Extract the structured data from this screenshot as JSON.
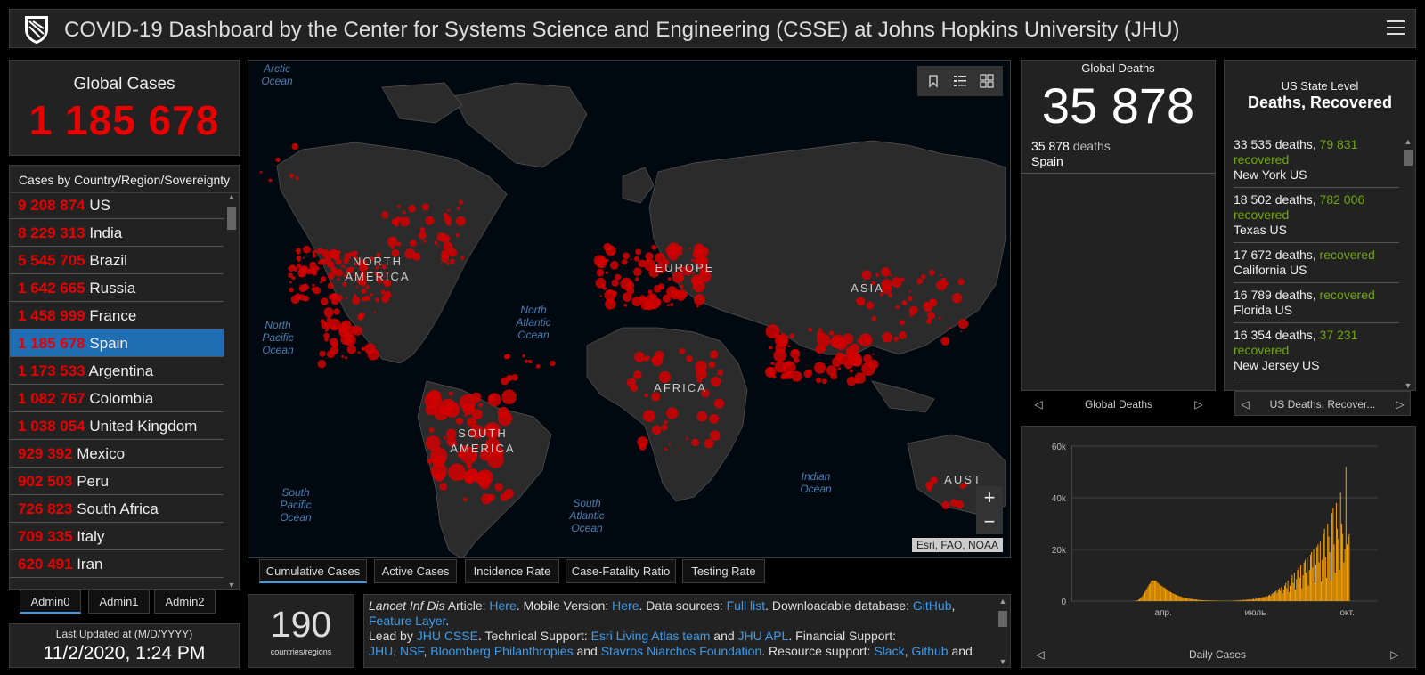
{
  "header": {
    "title": "COVID-19 Dashboard by the Center for Systems Science and Engineering (CSSE) at Johns Hopkins University (JHU)"
  },
  "global_cases": {
    "label": "Global Cases",
    "value": "1 185 678"
  },
  "country_list": {
    "header": "Cases by Country/Region/Sovereignty",
    "rows": [
      {
        "num": "9 208 874",
        "name": "US"
      },
      {
        "num": "8 229 313",
        "name": "India"
      },
      {
        "num": "5 545 705",
        "name": "Brazil"
      },
      {
        "num": "1 642 665",
        "name": "Russia"
      },
      {
        "num": "1 458 999",
        "name": "France"
      },
      {
        "num": "1 185 678",
        "name": "Spain"
      },
      {
        "num": "1 173 533",
        "name": "Argentina"
      },
      {
        "num": "1 082 767",
        "name": "Colombia"
      },
      {
        "num": "1 038 054",
        "name": "United Kingdom"
      },
      {
        "num": "929 392",
        "name": "Mexico"
      },
      {
        "num": "902 503",
        "name": "Peru"
      },
      {
        "num": "726 823",
        "name": "South Africa"
      },
      {
        "num": "709 335",
        "name": "Italy"
      },
      {
        "num": "620 491",
        "name": "Iran"
      }
    ],
    "selected_index": 5
  },
  "admin_tabs": [
    "Admin0",
    "Admin1",
    "Admin2"
  ],
  "last_updated": {
    "label": "Last Updated at (M/D/YYYY)",
    "value": "11/2/2020, 1:24 PM"
  },
  "map": {
    "ocean_labels": [
      "Arctic Ocean",
      "North Pacific Ocean",
      "North Atlantic Ocean",
      "South Pacific Ocean",
      "South Atlantic Ocean",
      "Indian Ocean"
    ],
    "continent_labels": [
      "NORTH AMERICA",
      "EUROPE",
      "ASIA",
      "AFRICA",
      "SOUTH AMERICA",
      "AUST"
    ],
    "attribution": "Esri, FAO, NOAA",
    "zoom_in": "+",
    "zoom_out": "−"
  },
  "map_tabs": [
    "Cumulative Cases",
    "Active Cases",
    "Incidence Rate",
    "Case-Fatality Ratio",
    "Testing Rate"
  ],
  "countries_count": {
    "value": "190",
    "label": "countries/regions"
  },
  "info": {
    "l1_italic": "Lancet Inf Dis",
    "l1_a": " Article: ",
    "l1_here1": "Here",
    "l1_b": ". Mobile Version: ",
    "l1_here2": "Here",
    "l1_c": ". Data sources: ",
    "l1_full": "Full list",
    "l1_d": ". Downloadable database: ",
    "l1_github": "GitHub",
    "l1_e": ",",
    "l2_feature": "Feature Layer",
    "l2_a": ".",
    "l3_a": "Lead by ",
    "l3_jhu": "JHU CSSE",
    "l3_b": ". Technical Support: ",
    "l3_esri": "Esri Living Atlas team",
    "l3_c": " and ",
    "l3_apl": "JHU APL",
    "l3_d": ". Financial Support:",
    "l4_jhu": "JHU",
    "l4_a": ", ",
    "l4_nsf": "NSF",
    "l4_b": ", ",
    "l4_bloom": "Bloomberg Philanthropies",
    "l4_c": " and ",
    "l4_stav": "Stavros Niarchos Foundation",
    "l4_d": ". Resource support: ",
    "l4_slack": "Slack",
    "l4_e": ", ",
    "l4_github": "Github",
    "l4_f": " and"
  },
  "global_deaths": {
    "label": "Global Deaths",
    "value": "35 878",
    "item_num": "35 878",
    "item_txt": "deaths",
    "item_place": "Spain",
    "nav_label": "Global Deaths"
  },
  "us_state": {
    "label": "US State Level",
    "title": "Deaths, Recovered",
    "nav_label": "US Deaths, Recover...",
    "rows": [
      {
        "deaths": "33 535 deaths,",
        "recovered_num": "79 831",
        "recovered_txt": "recovered",
        "place": "New York US"
      },
      {
        "deaths": "18 502 deaths,",
        "recovered_num": "782 006",
        "recovered_txt": "recovered",
        "place": "Texas US"
      },
      {
        "deaths": "17 672 deaths,",
        "recovered_num": "",
        "recovered_txt": "recovered",
        "place": "California US"
      },
      {
        "deaths": "16 789 deaths,",
        "recovered_num": "",
        "recovered_txt": "recovered",
        "place": "Florida US"
      },
      {
        "deaths": "16 354 deaths,",
        "recovered_num": "37 231",
        "recovered_txt": "recovered",
        "place": "New Jersey US"
      }
    ]
  },
  "chart_data": {
    "type": "bar",
    "title": "",
    "xlabel": "",
    "ylabel": "",
    "nav_label": "Daily Cases",
    "ylim": [
      0,
      60000
    ],
    "yticks": [
      "60k",
      "40k",
      "20k",
      "0"
    ],
    "xticks": [
      "апр.",
      "июль",
      "окт."
    ],
    "bar_color": "#ffa500",
    "days": 285,
    "values": [
      0,
      0,
      0,
      0,
      0,
      0,
      0,
      0,
      0,
      0,
      0,
      0,
      0,
      0,
      0,
      0,
      0,
      0,
      0,
      0,
      0,
      0,
      0,
      0,
      0,
      0,
      0,
      0,
      0,
      0,
      0,
      0,
      0,
      0,
      0,
      0,
      0,
      0,
      0,
      0,
      0,
      0,
      0,
      0,
      0,
      0,
      0,
      0,
      0,
      0,
      0,
      0,
      0,
      0,
      2,
      5,
      10,
      30,
      60,
      100,
      200,
      300,
      500,
      800,
      1200,
      1700,
      2300,
      3000,
      3600,
      4300,
      5000,
      5800,
      6500,
      7000,
      7800,
      8100,
      8000,
      7900,
      8000,
      7500,
      7000,
      6700,
      6300,
      6000,
      5800,
      5400,
      5200,
      5000,
      4600,
      4300,
      4000,
      3700,
      3500,
      3200,
      3000,
      2800,
      2600,
      2400,
      2300,
      2100,
      1900,
      1800,
      1700,
      1500,
      1400,
      1300,
      1200,
      1100,
      1000,
      950,
      900,
      850,
      800,
      750,
      700,
      650,
      600,
      550,
      500,
      450,
      400,
      380,
      350,
      330,
      300,
      280,
      270,
      250,
      240,
      230,
      220,
      200,
      200,
      190,
      180,
      170,
      160,
      150,
      150,
      140,
      130,
      120,
      120,
      110,
      100,
      100,
      100,
      100,
      100,
      100,
      200,
      150,
      200,
      250,
      300,
      250,
      350,
      400,
      300,
      450,
      500,
      400,
      550,
      600,
      500,
      650,
      700,
      600,
      800,
      900,
      700,
      1000,
      1100,
      900,
      1200,
      1400,
      1100,
      1500,
      1700,
      1400,
      1800,
      2000,
      1700,
      2200,
      2500,
      2100,
      2800,
      3200,
      2600,
      3600,
      4000,
      3200,
      4500,
      5000,
      4000,
      5500,
      3000,
      4500,
      6000,
      7000,
      5000,
      8000,
      3500,
      6000,
      9000,
      10000,
      7000,
      11000,
      4500,
      8500,
      12000,
      13000,
      9000,
      14000,
      5000,
      10000,
      15000,
      16000,
      11000,
      17000,
      6000,
      12000,
      18000,
      19000,
      13000,
      20000,
      7000,
      14000,
      21000,
      22000,
      15000,
      23000,
      7500,
      16000,
      26000,
      28000,
      17000,
      9000,
      30000,
      25000,
      19000,
      8000,
      34000,
      36000,
      22000,
      11000,
      38000,
      28000,
      24000,
      12000,
      42000,
      30000,
      26000,
      15000,
      20000,
      52000,
      22000,
      25000,
      26000
    ]
  }
}
